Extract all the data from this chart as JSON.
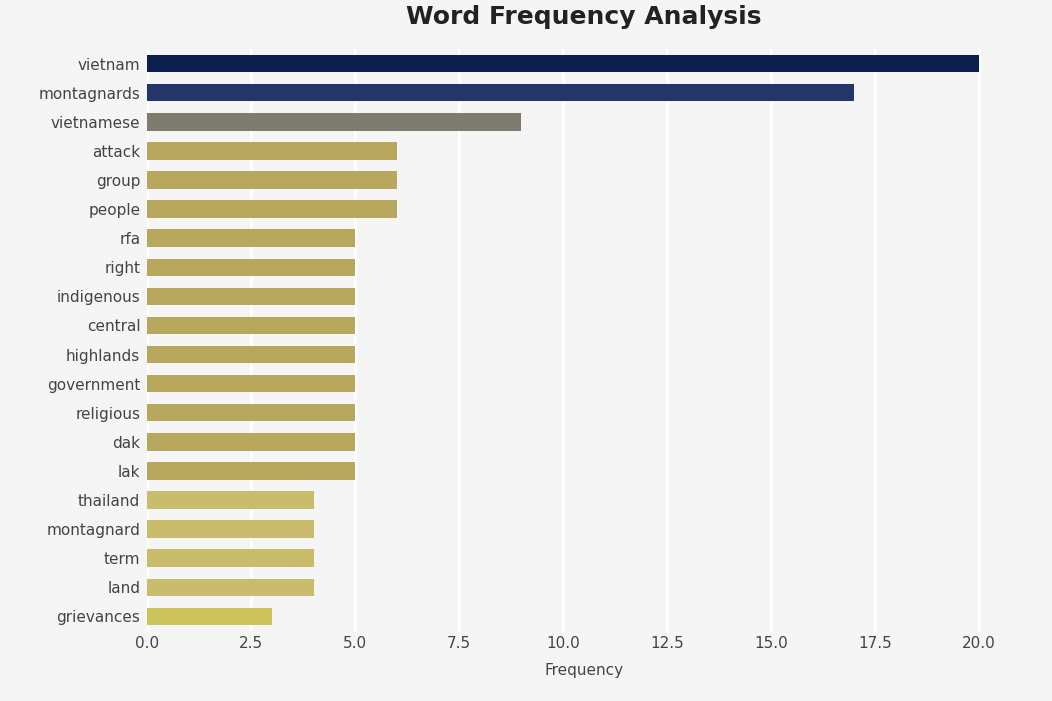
{
  "title": "Word Frequency Analysis",
  "xlabel": "Frequency",
  "categories": [
    "vietnam",
    "montagnards",
    "vietnamese",
    "attack",
    "group",
    "people",
    "rfa",
    "right",
    "indigenous",
    "central",
    "highlands",
    "government",
    "religious",
    "dak",
    "lak",
    "thailand",
    "montagnard",
    "term",
    "land",
    "grievances"
  ],
  "values": [
    20,
    17,
    9,
    6,
    6,
    6,
    5,
    5,
    5,
    5,
    5,
    5,
    5,
    5,
    5,
    4,
    4,
    4,
    4,
    3
  ],
  "colors": [
    "#0d1f4c",
    "#253568",
    "#7d7c6e",
    "#b8a85e",
    "#b8a85e",
    "#b8a85e",
    "#b8a85e",
    "#b8a85e",
    "#b8a85e",
    "#b8a85e",
    "#b8a85e",
    "#b8a85e",
    "#b8a85e",
    "#b8a85e",
    "#b8a85e",
    "#c9bc6a",
    "#c9bc6a",
    "#c9bc6a",
    "#c9bc6a",
    "#ccc45a"
  ],
  "background_color": "#f5f5f5",
  "plot_background_color": "#f5f5f5",
  "title_fontsize": 18,
  "label_fontsize": 11,
  "tick_fontsize": 11,
  "xlim": [
    0,
    21
  ],
  "xticks": [
    0.0,
    2.5,
    5.0,
    7.5,
    10.0,
    12.5,
    15.0,
    17.5,
    20.0
  ],
  "bar_height": 0.6,
  "grid_color": "#ffffff",
  "grid_linewidth": 2.0
}
